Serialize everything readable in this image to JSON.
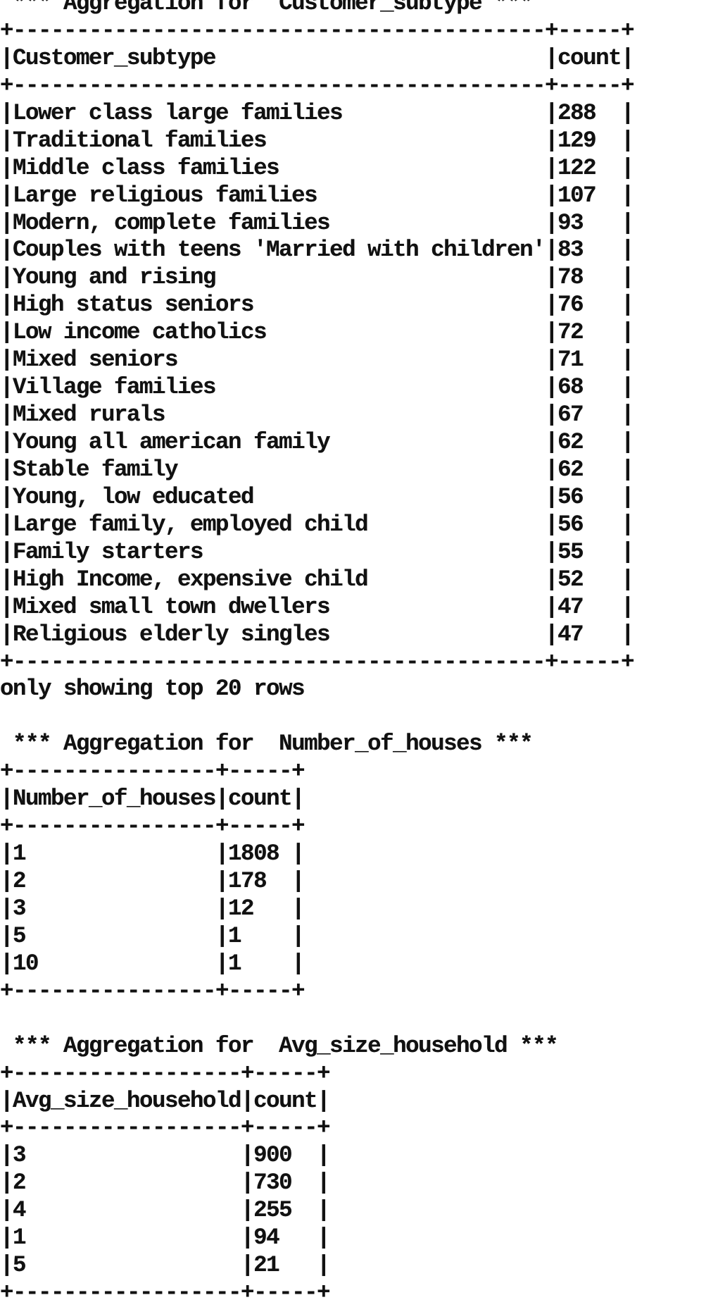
{
  "console": {
    "lines": [
      " *** Aggregation for  Customer_subtype ***",
      "+------------------------------------------+-----+",
      "|Customer_subtype                          |count|",
      "+------------------------------------------+-----+",
      "|Lower class large families                |288  |",
      "|Traditional families                      |129  |",
      "|Middle class families                     |122  |",
      "|Large religious families                  |107  |",
      "|Modern, complete families                 |93   |",
      "|Couples with teens 'Married with children'|83   |",
      "|Young and rising                          |78   |",
      "|High status seniors                       |76   |",
      "|Low income catholics                      |72   |",
      "|Mixed seniors                             |71   |",
      "|Village families                          |68   |",
      "|Mixed rurals                              |67   |",
      "|Young all american family                 |62   |",
      "|Stable family                             |62   |",
      "|Young, low educated                       |56   |",
      "|Large family, employed child              |56   |",
      "|Family starters                           |55   |",
      "|High Income, expensive child              |52   |",
      "|Mixed small town dwellers                 |47   |",
      "|Religious elderly singles                 |47   |",
      "+------------------------------------------+-----+",
      "only showing top 20 rows",
      "",
      " *** Aggregation for  Number_of_houses ***",
      "+----------------+-----+",
      "|Number_of_houses|count|",
      "+----------------+-----+",
      "|1               |1808 |",
      "|2               |178  |",
      "|3               |12   |",
      "|5               |1    |",
      "|10              |1    |",
      "+----------------+-----+",
      "",
      " *** Aggregation for  Avg_size_household ***",
      "+------------------+-----+",
      "|Avg_size_household|count|",
      "+------------------+-----+",
      "|3                 |900  |",
      "|2                 |730  |",
      "|4                 |255  |",
      "|1                 |94   |",
      "|5                 |21   |",
      "+------------------+-----+"
    ]
  }
}
